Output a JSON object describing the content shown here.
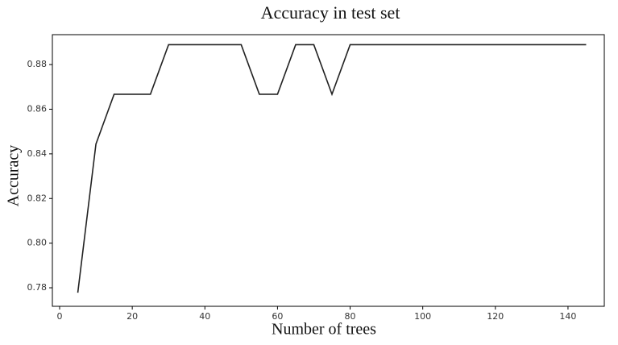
{
  "chart_data": {
    "type": "line",
    "title": "Accuracy in test set",
    "x_label": "Number of trees",
    "y_label": "Accuracy",
    "x": [
      5,
      10,
      15,
      20,
      25,
      30,
      35,
      40,
      45,
      50,
      55,
      60,
      65,
      70,
      75,
      80,
      85,
      90,
      95,
      100,
      105,
      110,
      115,
      120,
      125,
      130,
      135,
      140,
      145
    ],
    "series": [
      {
        "color": "#222222",
        "values": [
          0.7778,
          0.8444,
          0.8667,
          0.8667,
          0.8667,
          0.8889,
          0.8889,
          0.8889,
          0.8889,
          0.8889,
          0.8667,
          0.8667,
          0.8889,
          0.8889,
          0.8667,
          0.8889,
          0.8889,
          0.8889,
          0.8889,
          0.8889,
          0.8889,
          0.8889,
          0.8889,
          0.8889,
          0.8889,
          0.8889,
          0.8889,
          0.8889,
          0.8889
        ]
      }
    ],
    "xlim": [
      -2,
      150
    ],
    "ylim": [
      0.7717,
      0.8934
    ],
    "xticks": [
      0,
      20,
      40,
      60,
      80,
      100,
      120,
      140
    ],
    "yticks": [
      0.78,
      {
        "value": 0.8,
        "label": "0.80"
      },
      0.82,
      0.84,
      0.86,
      0.88
    ],
    "grid": false
  }
}
